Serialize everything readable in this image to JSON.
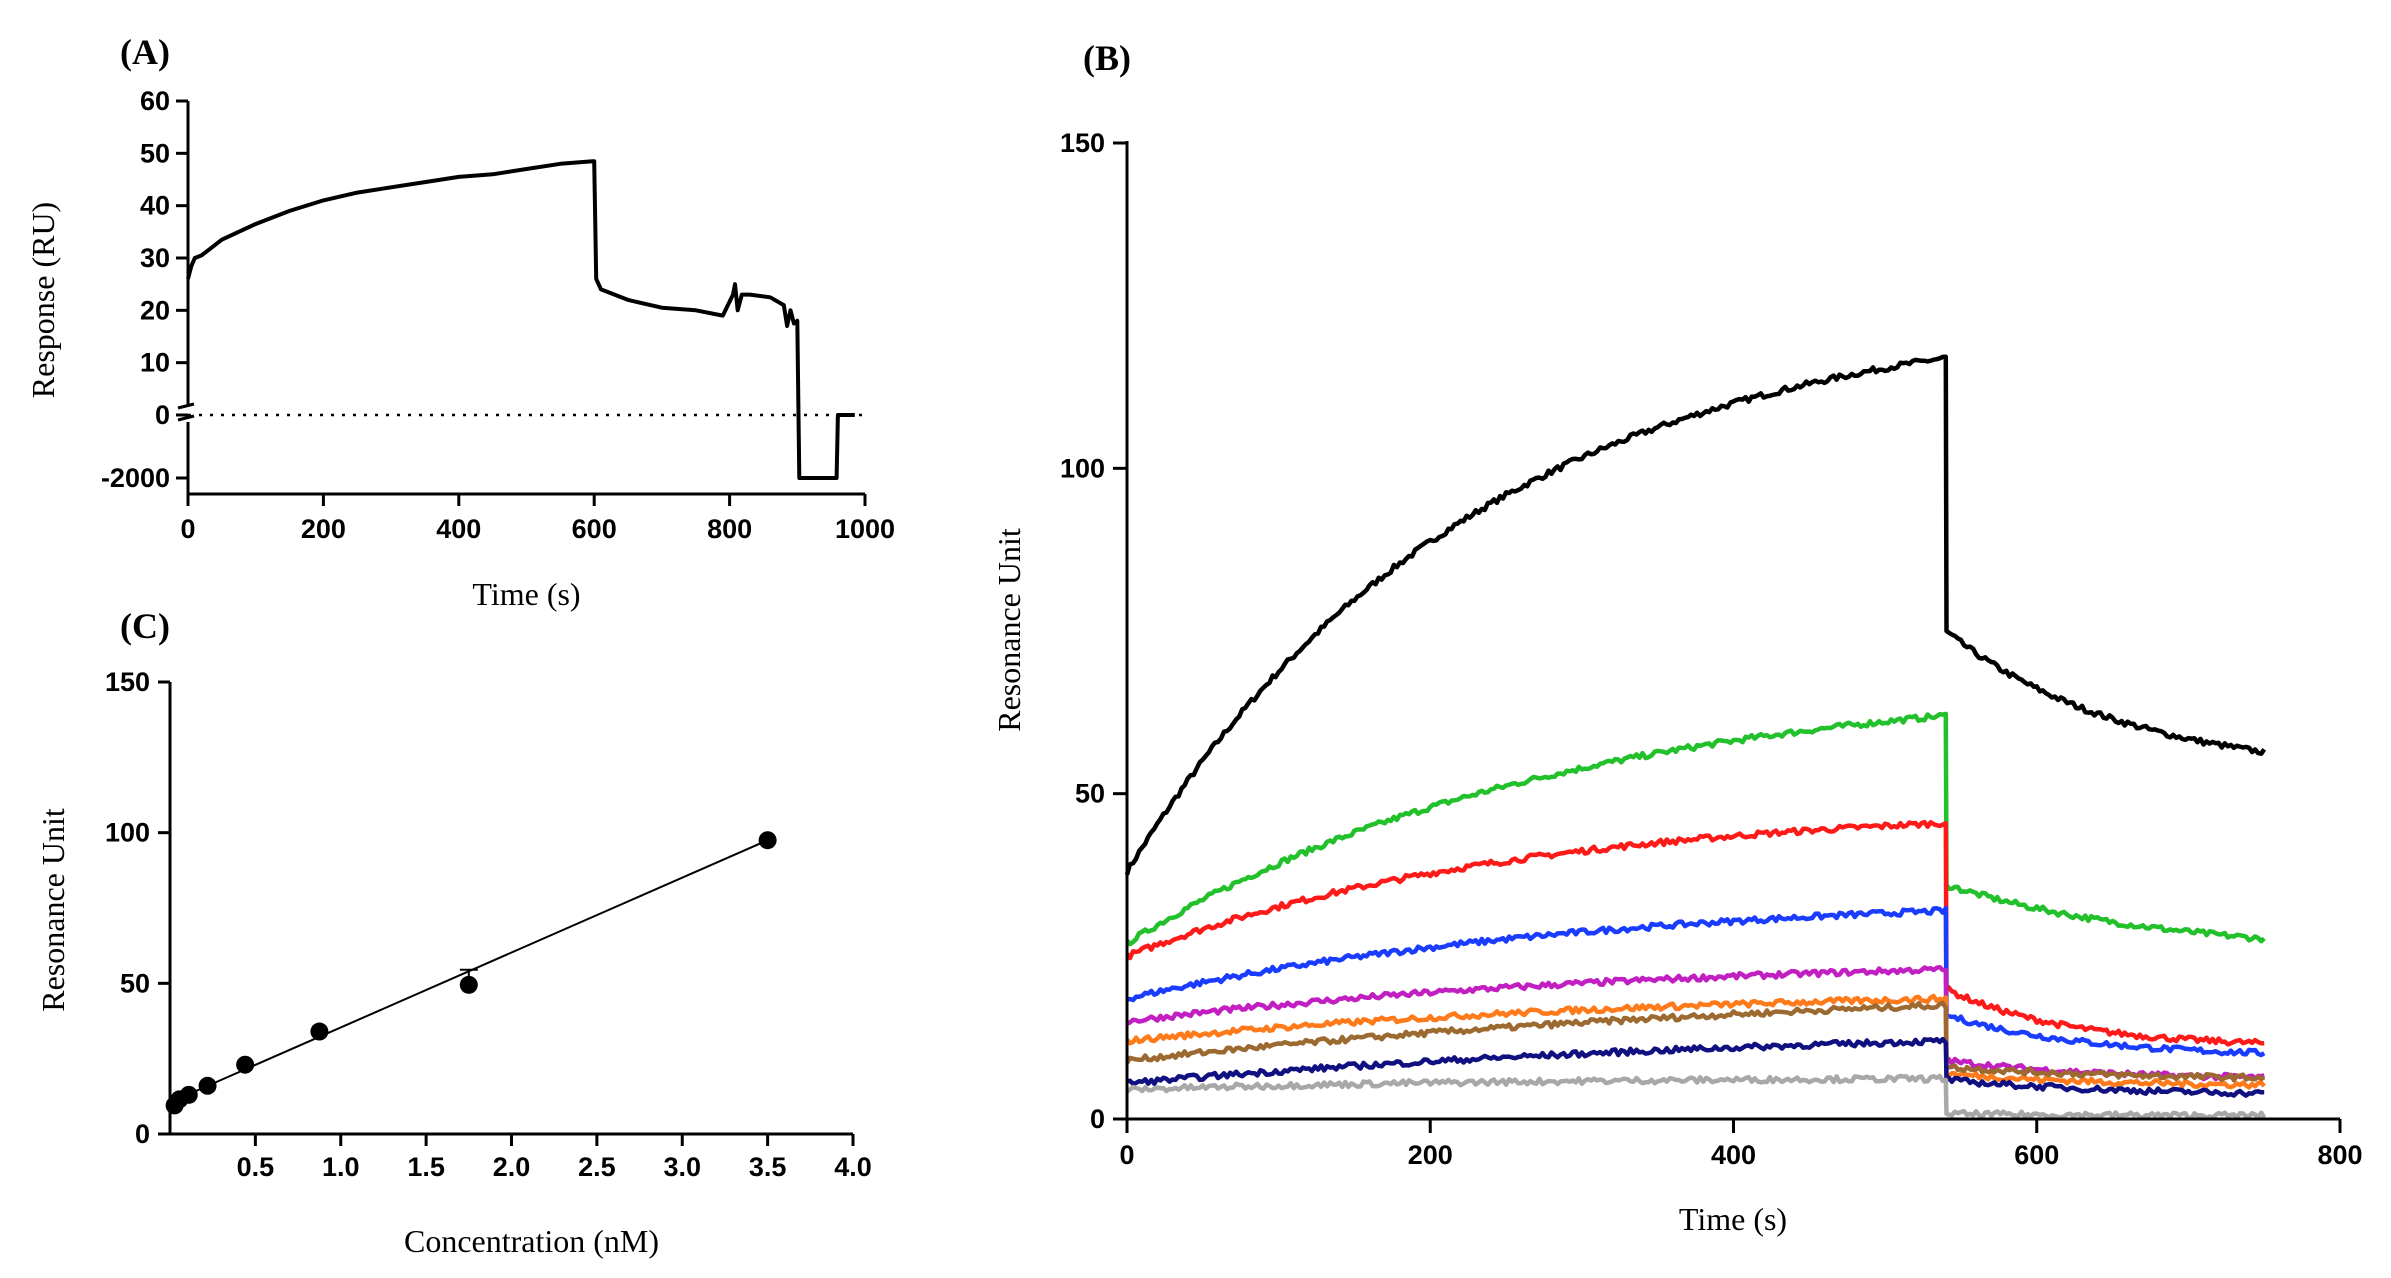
{
  "figure": {
    "panels": [
      {
        "id": "A",
        "label": "(A)"
      },
      {
        "id": "B",
        "label": "(B)"
      },
      {
        "id": "C",
        "label": "(C)"
      }
    ]
  },
  "chart_data": [
    {
      "panel": "A",
      "type": "line",
      "title": "",
      "xlabel": "Time  (s)",
      "ylabel": "Response  (RU)",
      "xlim": [
        0,
        1000
      ],
      "x_ticks": [
        0,
        200,
        400,
        600,
        800,
        1000
      ],
      "y_upper_ticks": [
        0,
        10,
        20,
        30,
        40,
        50,
        60
      ],
      "y_lower_ticks": [
        -2000
      ],
      "y_axis_break": true,
      "baseline": 0,
      "series": [
        {
          "name": "Response",
          "color": "#000000",
          "x": [
            0,
            5,
            10,
            20,
            30,
            50,
            100,
            150,
            200,
            250,
            300,
            350,
            400,
            450,
            500,
            550,
            598,
            600,
            603,
            610,
            650,
            700,
            750,
            790,
            805,
            808,
            812,
            818,
            830,
            860,
            880,
            885,
            890,
            895,
            900,
            903,
            908,
            920,
            950,
            958,
            960,
            963,
            975,
            985
          ],
          "y": [
            26,
            28.5,
            30,
            30.5,
            31.5,
            33.5,
            36.5,
            39,
            41,
            42.5,
            43.5,
            44.5,
            45.5,
            46,
            47,
            48,
            48.5,
            48.5,
            26,
            24,
            22,
            20.5,
            20,
            19,
            23,
            25,
            20,
            23,
            23,
            22.5,
            21,
            17,
            20,
            17.5,
            18,
            -2000,
            -2000,
            -2000,
            -2000,
            -2000,
            0,
            0,
            0,
            0
          ]
        }
      ]
    },
    {
      "panel": "B",
      "type": "line",
      "title": "",
      "xlabel": "Time (s)",
      "ylabel": "Resonance  Unit",
      "xlim": [
        0,
        800
      ],
      "ylim": [
        0,
        150
      ],
      "x_ticks": [
        0,
        200,
        400,
        600,
        800
      ],
      "y_ticks": [
        0,
        50,
        100,
        150
      ],
      "injection_end": 540,
      "series": [
        {
          "name": "black",
          "color": "#000000",
          "start": 38,
          "assoc_end": 117,
          "tau_a": 230,
          "drop_to": 75,
          "end": 52.5,
          "tau_d": 120
        },
        {
          "name": "green",
          "color": "#22c02a",
          "start": 27,
          "assoc_end": 62,
          "tau_a": 280,
          "drop_to": 36,
          "end": 25,
          "tau_d": 150
        },
        {
          "name": "red",
          "color": "#ff1a1a",
          "start": 25,
          "assoc_end": 45.5,
          "tau_a": 250,
          "drop_to": 20,
          "end": 11,
          "tau_d": 80
        },
        {
          "name": "blue",
          "color": "#1a3cff",
          "start": 18.5,
          "assoc_end": 32,
          "tau_a": 300,
          "drop_to": 16,
          "end": 9.5,
          "tau_d": 90
        },
        {
          "name": "magenta",
          "color": "#c21fc2",
          "start": 15,
          "assoc_end": 23,
          "tau_a": 350,
          "drop_to": 9,
          "end": 6,
          "tau_d": 100
        },
        {
          "name": "orange",
          "color": "#ff7a1a",
          "start": 12,
          "assoc_end": 18.5,
          "tau_a": 350,
          "drop_to": 7,
          "end": 5,
          "tau_d": 100
        },
        {
          "name": "brown",
          "color": "#9c6a30",
          "start": 9,
          "assoc_end": 17.5,
          "tau_a": 500,
          "drop_to": 8,
          "end": 6,
          "tau_d": 120
        },
        {
          "name": "navy",
          "color": "#101080",
          "start": 5.5,
          "assoc_end": 12,
          "tau_a": 450,
          "drop_to": 6,
          "end": 3.5,
          "tau_d": 120
        },
        {
          "name": "gray",
          "color": "#a8a8a8",
          "start": 4.5,
          "assoc_end": 6.2,
          "tau_a": 250,
          "drop_to": 0.8,
          "end": 0.5,
          "tau_d": 100
        }
      ]
    },
    {
      "panel": "C",
      "type": "scatter",
      "title": "",
      "xlabel": "Concentration (nM)",
      "ylabel": "Resonance  Unit",
      "xlim": [
        0,
        4.0
      ],
      "ylim": [
        0,
        150
      ],
      "x_ticks": [
        "0.5",
        "1.0",
        "1.5",
        "2.0",
        "2.5",
        "3.0",
        "3.5",
        "4.0"
      ],
      "y_ticks": [
        "0",
        "50",
        "100",
        "150"
      ],
      "points": {
        "x": [
          0.027,
          0.055,
          0.11,
          0.22,
          0.44,
          0.875,
          1.75,
          3.5
        ],
        "y": [
          9.5,
          11.5,
          13,
          16,
          23,
          34,
          49.5,
          97.5
        ],
        "error": [
          0,
          0,
          0,
          0,
          0,
          0,
          5,
          0
        ]
      },
      "fit": {
        "x": [
          0,
          3.5
        ],
        "y": [
          10.5,
          97.5
        ]
      }
    }
  ]
}
